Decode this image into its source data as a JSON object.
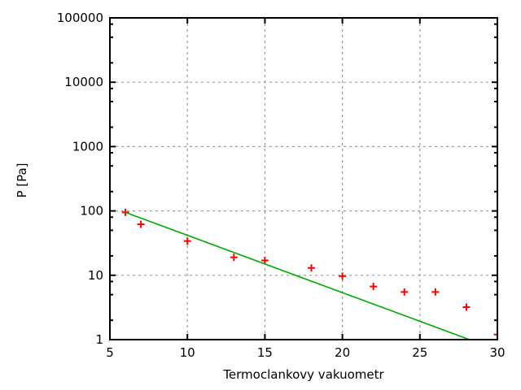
{
  "chart_data": {
    "type": "scatter",
    "title": "",
    "xlabel": "Termoclankovy vakuometr",
    "ylabel": "P [Pa]",
    "x_scale": "linear",
    "y_scale": "log10",
    "xlim": [
      5,
      30
    ],
    "ylim": [
      1,
      100000
    ],
    "x_ticks": [
      5,
      10,
      15,
      20,
      25,
      30
    ],
    "y_ticks": [
      1,
      10,
      100,
      1000,
      10000,
      100000
    ],
    "y_tick_labels": [
      "1",
      "10",
      "100",
      "1000",
      "10000",
      "100000"
    ],
    "y_minor_tick_multipliers": [
      2,
      5,
      8
    ],
    "grid": true,
    "grid_style": "dashed",
    "legend": "none",
    "series": [
      {
        "name": "measured-points",
        "type": "points",
        "marker": "plus",
        "color": "#ff0000",
        "points": [
          [
            6,
            95
          ],
          [
            7,
            62
          ],
          [
            10,
            34
          ],
          [
            13,
            19
          ],
          [
            15,
            17
          ],
          [
            18,
            13
          ],
          [
            20,
            9.7
          ],
          [
            22,
            6.7
          ],
          [
            24,
            5.5
          ],
          [
            26,
            5.5
          ],
          [
            28,
            3.2
          ],
          [
            30,
            1.2
          ]
        ]
      },
      {
        "name": "fit-line",
        "type": "line",
        "color": "#00aa00",
        "points": [
          [
            6,
            95
          ],
          [
            28.2,
            1
          ]
        ]
      }
    ],
    "colors": {
      "background": "#ffffff",
      "axis": "#000000",
      "grid": "#9a9a9a",
      "text": "#000000",
      "points": "#ff0000",
      "line": "#00aa00"
    }
  }
}
